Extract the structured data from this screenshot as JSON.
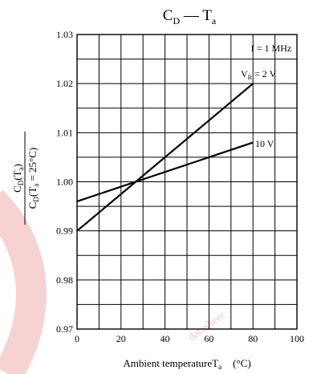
{
  "chart_data": {
    "type": "line",
    "title": {
      "base": "C",
      "base_sub": "D",
      "sep": " — ",
      "var": "T",
      "var_sub": "a"
    },
    "xlabel": {
      "text": "Ambient temperature",
      "sym": "T",
      "sym_sub": "a",
      "unit": "(°C)"
    },
    "ylabel": {
      "num_base": "C",
      "num_sub": "D",
      "num_paren": "(T",
      "num_paren_sub": "a",
      "num_close": ")",
      "den_base": "C",
      "den_sub": "D",
      "den_paren": "(T",
      "den_paren_sub": "a",
      "den_rest": " = 25°C)"
    },
    "xlim": [
      0,
      100
    ],
    "ylim": [
      0.97,
      1.03
    ],
    "x_ticks": [
      "0",
      "20",
      "40",
      "60",
      "80",
      "100"
    ],
    "y_ticks": [
      "0.97",
      "0.98",
      "0.99",
      "1.00",
      "1.01",
      "1.02",
      "1.03"
    ],
    "x_grid_step": 10,
    "y_grid_step": 0.005,
    "grid": true,
    "condition_label": "f = 1 MHz",
    "series": [
      {
        "name": "V_R = 2 V",
        "label_main": "V",
        "label_sub": "R",
        "label_rest": " = 2 V",
        "x": [
          0,
          80
        ],
        "y": [
          0.99,
          1.02
        ]
      },
      {
        "name": "10 V",
        "label_main": "10 V",
        "label_sub": "",
        "label_rest": "",
        "x": [
          0,
          80
        ],
        "y": [
          0.996,
          1.008
        ]
      }
    ],
    "watermark": "datasheet"
  }
}
